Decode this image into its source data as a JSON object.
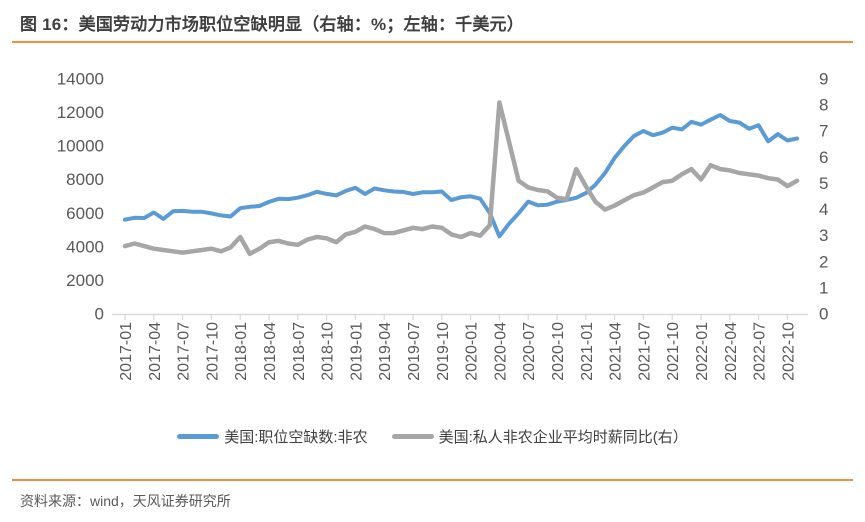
{
  "title": "图 16：美国劳动力市场职位空缺明显（右轴：%；左轴：千美元）",
  "source": "资料来源：wind，天风证券研究所",
  "colors": {
    "accent_orange": "#EE8F41",
    "series_blue": "#5B9BD5",
    "series_gray": "#A6A6A6",
    "axis_line": "#D9D9D9",
    "text_title": "#3F3F3F",
    "text_axis": "#595959",
    "text_legend": "#404040"
  },
  "legend": {
    "items": [
      {
        "label": "美国:职位空缺数:非农",
        "color": "#5B9BD5"
      },
      {
        "label": "美国:私人非农企业平均时薪同比(右）",
        "color": "#A6A6A6"
      }
    ]
  },
  "chart_data": {
    "type": "line",
    "title": "美国劳动力市场职位空缺明显",
    "right_axis_unit": "%",
    "left_axis_unit": "千美元",
    "grid": false,
    "legend_position": "bottom",
    "x": [
      "2017-01",
      "2017-02",
      "2017-03",
      "2017-04",
      "2017-05",
      "2017-06",
      "2017-07",
      "2017-08",
      "2017-09",
      "2017-10",
      "2017-11",
      "2017-12",
      "2018-01",
      "2018-02",
      "2018-03",
      "2018-04",
      "2018-05",
      "2018-06",
      "2018-07",
      "2018-08",
      "2018-09",
      "2018-10",
      "2018-11",
      "2018-12",
      "2019-01",
      "2019-02",
      "2019-03",
      "2019-04",
      "2019-05",
      "2019-06",
      "2019-07",
      "2019-08",
      "2019-09",
      "2019-10",
      "2019-11",
      "2019-12",
      "2020-01",
      "2020-02",
      "2020-03",
      "2020-04",
      "2020-05",
      "2020-06",
      "2020-07",
      "2020-08",
      "2020-09",
      "2020-10",
      "2020-11",
      "2020-12",
      "2021-01",
      "2021-02",
      "2021-03",
      "2021-04",
      "2021-05",
      "2021-06",
      "2021-07",
      "2021-08",
      "2021-09",
      "2021-10",
      "2021-11",
      "2021-12",
      "2022-01",
      "2022-02",
      "2022-03",
      "2022-04",
      "2022-05",
      "2022-06",
      "2022-07",
      "2022-08",
      "2022-09",
      "2022-10",
      "2022-11"
    ],
    "x_tick_labels": [
      "2017-01",
      "2017-04",
      "2017-07",
      "2017-10",
      "2018-01",
      "2018-04",
      "2018-07",
      "2018-10",
      "2019-01",
      "2019-04",
      "2019-07",
      "2019-10",
      "2020-01",
      "2020-04",
      "2020-07",
      "2020-10",
      "2021-01",
      "2021-04",
      "2021-07",
      "2021-10",
      "2022-01",
      "2022-04",
      "2022-07",
      "2022-10"
    ],
    "left_axis": {
      "min": 0,
      "max": 14000,
      "ticks": [
        0,
        2000,
        4000,
        6000,
        8000,
        10000,
        12000,
        14000
      ]
    },
    "right_axis": {
      "min": 0,
      "max": 9,
      "ticks": [
        0,
        1,
        2,
        3,
        4,
        5,
        6,
        7,
        8,
        9
      ]
    },
    "series": [
      {
        "name": "美国:职位空缺数:非农",
        "axis": "left",
        "color": "#5B9BD5",
        "values": [
          5621,
          5729,
          5722,
          6044,
          5666,
          6116,
          6140,
          6090,
          6091,
          5996,
          5874,
          5811,
          6302,
          6389,
          6434,
          6680,
          6862,
          6847,
          6929,
          7078,
          7278,
          7157,
          7064,
          7335,
          7520,
          7150,
          7480,
          7370,
          7300,
          7270,
          7150,
          7250,
          7250,
          7300,
          6787,
          6950,
          7012,
          6871,
          6011,
          4630,
          5371,
          6001,
          6697,
          6480,
          6513,
          6692,
          6796,
          6920,
          7200,
          7700,
          8400,
          9300,
          10000,
          10600,
          10900,
          10650,
          10800,
          11100,
          11000,
          11448,
          11283,
          11575,
          11855,
          11500,
          11400,
          11040,
          11239,
          10280,
          10717,
          10334,
          10458
        ]
      },
      {
        "name": "美国:私人非农企业平均时薪同比(右）",
        "axis": "right",
        "color": "#A6A6A6",
        "values": [
          2.6,
          2.7,
          2.6,
          2.5,
          2.45,
          2.4,
          2.35,
          2.4,
          2.45,
          2.5,
          2.4,
          2.55,
          2.95,
          2.3,
          2.5,
          2.75,
          2.8,
          2.7,
          2.65,
          2.85,
          2.95,
          2.9,
          2.75,
          3.05,
          3.15,
          3.35,
          3.25,
          3.1,
          3.1,
          3.2,
          3.3,
          3.25,
          3.35,
          3.3,
          3.05,
          2.95,
          3.1,
          3.0,
          3.4,
          8.1,
          6.6,
          5.1,
          4.85,
          4.75,
          4.7,
          4.45,
          4.4,
          5.55,
          4.9,
          4.3,
          4.0,
          4.15,
          4.35,
          4.55,
          4.65,
          4.85,
          5.05,
          5.1,
          5.35,
          5.55,
          5.15,
          5.7,
          5.55,
          5.5,
          5.4,
          5.35,
          5.3,
          5.2,
          5.15,
          4.9,
          5.1
        ]
      }
    ]
  }
}
